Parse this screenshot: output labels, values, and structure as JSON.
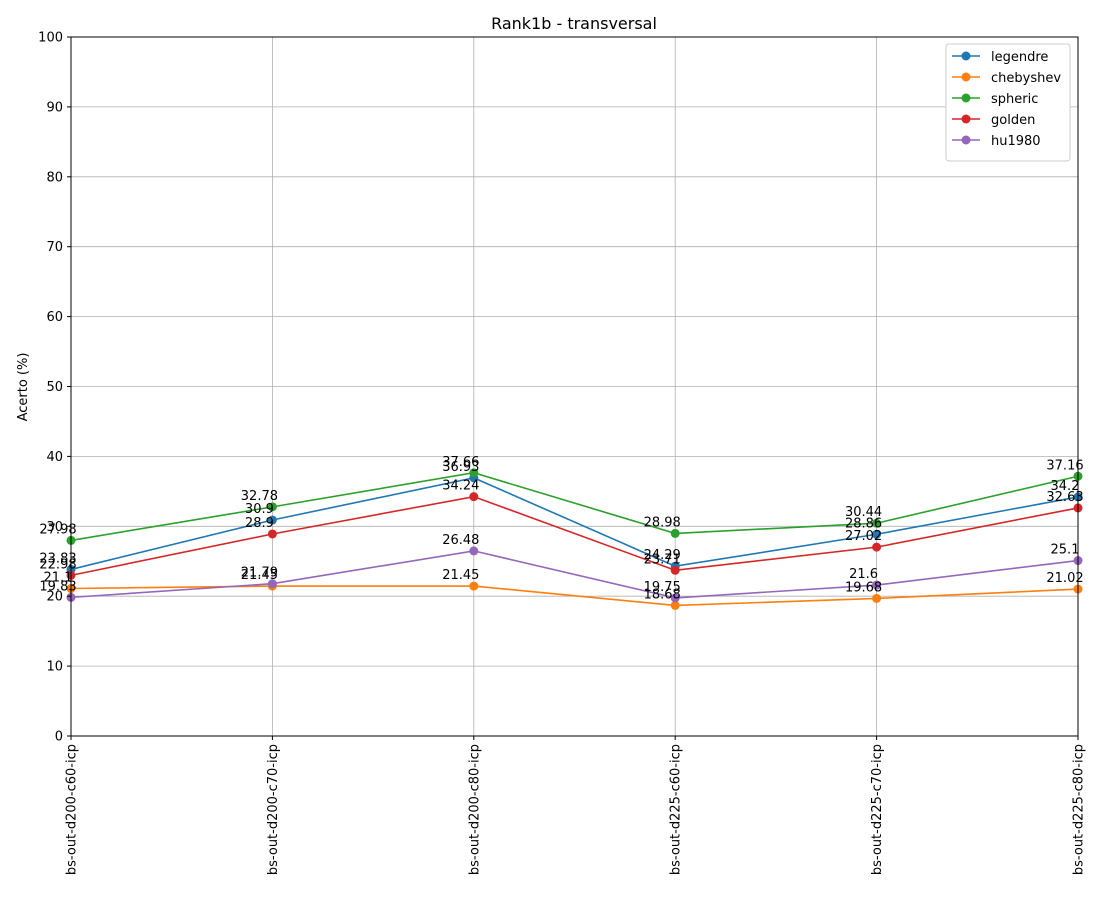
{
  "chart_data": {
    "type": "line",
    "title": "Rank1b - transversal",
    "xlabel": "",
    "ylabel": "Acerto (%)",
    "ylim": [
      0,
      100
    ],
    "yticks": [
      0,
      10,
      20,
      30,
      40,
      50,
      60,
      70,
      80,
      90,
      100
    ],
    "grid": true,
    "legend_position": "top-right",
    "categories": [
      "bs-out-d200-c60-icp",
      "bs-out-d200-c70-icp",
      "bs-out-d200-c80-icp",
      "bs-out-d225-c60-icp",
      "bs-out-d225-c70-icp",
      "bs-out-d225-c80-icp"
    ],
    "series": [
      {
        "name": "legendre",
        "color": "#1f77b4",
        "values": [
          23.83,
          30.9,
          36.93,
          24.29,
          28.86,
          34.2
        ]
      },
      {
        "name": "chebyshev",
        "color": "#ff7f0e",
        "values": [
          21.1,
          21.45,
          21.45,
          18.68,
          19.68,
          21.02
        ]
      },
      {
        "name": "spheric",
        "color": "#2ca02c",
        "values": [
          27.98,
          32.78,
          37.66,
          28.98,
          30.44,
          37.16
        ]
      },
      {
        "name": "golden",
        "color": "#d62728",
        "values": [
          22.98,
          28.9,
          34.24,
          23.71,
          27.02,
          32.63
        ]
      },
      {
        "name": "hu1980",
        "color": "#9467bd",
        "values": [
          19.83,
          21.79,
          26.48,
          19.75,
          21.6,
          25.1
        ]
      }
    ],
    "data_labels": [
      [
        "23.83",
        "30.9",
        "36.93",
        "24.29",
        "28.86",
        "34.2"
      ],
      [
        "21.1",
        "21.45",
        "21.45",
        "18.68",
        "19.68",
        "21.02"
      ],
      [
        "27.98",
        "32.78",
        "37.66",
        "28.98",
        "30.44",
        "37.16"
      ],
      [
        "22.98",
        "28.9",
        "34.24",
        "23.71",
        "27.02",
        "32.63"
      ],
      [
        "19.83",
        "21.79",
        "26.48",
        "19.75",
        "21.6",
        "25.1"
      ]
    ]
  }
}
